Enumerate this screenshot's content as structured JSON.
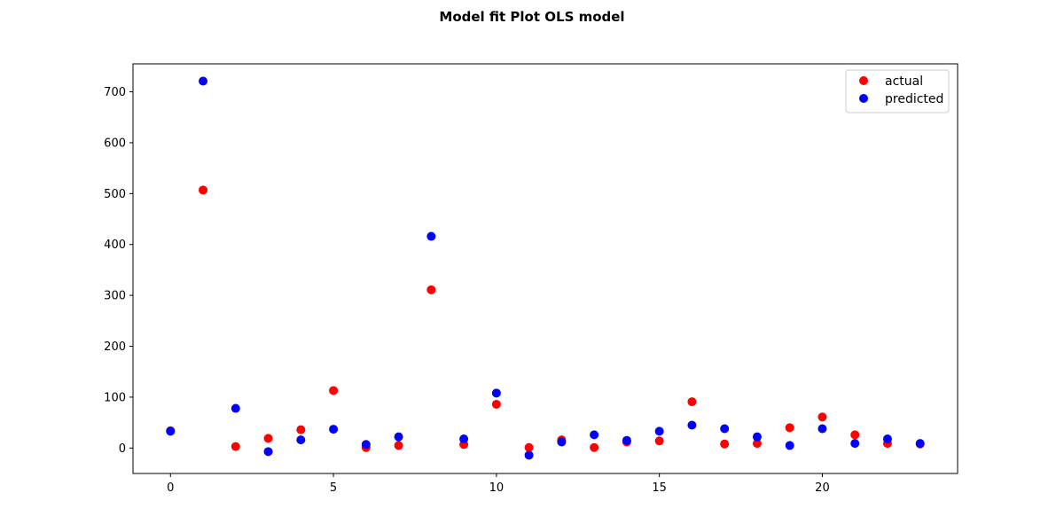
{
  "chart_data": {
    "type": "scatter",
    "title": "Model fit Plot OLS model",
    "xlabel": "",
    "ylabel": "",
    "xlim": [
      -1.15,
      24.15
    ],
    "ylim": [
      -50,
      755
    ],
    "xticks": [
      0,
      5,
      10,
      15,
      20
    ],
    "yticks": [
      0,
      100,
      200,
      300,
      400,
      500,
      600,
      700
    ],
    "grid": false,
    "legend_position": "top-right",
    "x": [
      0,
      1,
      2,
      3,
      4,
      5,
      6,
      7,
      8,
      9,
      10,
      11,
      12,
      13,
      14,
      15,
      16,
      17,
      18,
      19,
      20,
      21,
      22,
      23
    ],
    "series": [
      {
        "name": "actual",
        "color": "#ff0000",
        "values": [
          34,
          507,
          3,
          19,
          36,
          113,
          1,
          5,
          311,
          7,
          86,
          1,
          16,
          1,
          12,
          14,
          91,
          8,
          9,
          40,
          61,
          26,
          9,
          8
        ]
      },
      {
        "name": "predicted",
        "color": "#0000ff",
        "values": [
          33,
          721,
          78,
          -7,
          16,
          37,
          7,
          22,
          416,
          18,
          108,
          -14,
          12,
          26,
          15,
          33,
          45,
          38,
          22,
          5,
          38,
          9,
          18,
          9
        ]
      }
    ]
  }
}
